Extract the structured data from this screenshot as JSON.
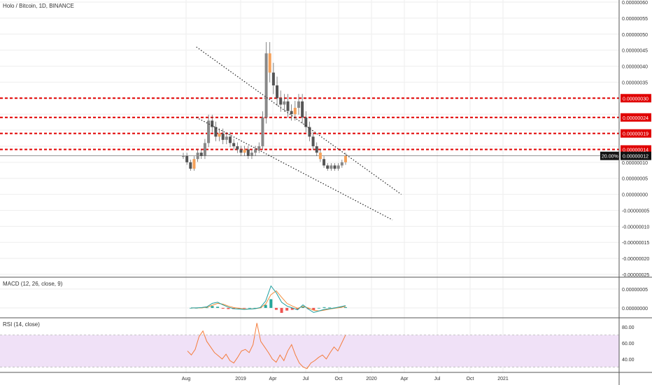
{
  "chart_data": {
    "type": "candlestick",
    "title": "Holo / Bitcoin, 1D, BINANCE",
    "x_tick_labels": [
      "Aug",
      "2019",
      "Apr",
      "Jul",
      "Oct",
      "2020",
      "Apr",
      "Jul",
      "Oct",
      "2021"
    ],
    "price_axis": {
      "ylim": [
        -2.5e-07,
        6e-07
      ],
      "tick_labels": [
        "0.00000060",
        "0.00000055",
        "0.00000050",
        "0.00000045",
        "0.00000040",
        "0.00000035",
        "0.00000030",
        "0.00000025",
        "0.00000020",
        "0.00000015",
        "0.00000010",
        "0.00000005",
        "0.00000000",
        "-0.00000005",
        "-0.00000010",
        "-0.00000015",
        "-0.00000020",
        "-0.00000025"
      ]
    },
    "horizontal_levels": [
      {
        "value": 3e-07,
        "label": "0.00000030",
        "color": "#e00000"
      },
      {
        "value": 2.4e-07,
        "label": "0.00000024",
        "color": "#e00000"
      },
      {
        "value": 1.9e-07,
        "label": "0.00000019",
        "color": "#e00000"
      },
      {
        "value": 1.4e-07,
        "label": "0.00000014",
        "color": "#e00000"
      }
    ],
    "last_price": {
      "value": 1.2e-07,
      "label": "0.00000012",
      "change_label": "20.00%"
    },
    "trendlines": [
      {
        "from": [
          0.03,
          4.6e-07
        ],
        "to": [
          0.5,
          0.0
        ],
        "style": "dotted"
      },
      {
        "from": [
          0.03,
          2.4e-07
        ],
        "to": [
          0.48,
          -8e-08
        ],
        "style": "dotted"
      }
    ],
    "close_series": [
      1.2e-07,
      1e-07,
      8e-08,
      1.1e-07,
      1.3e-07,
      1.2e-07,
      1.6e-07,
      2.3e-07,
      2.1e-07,
      1.8e-07,
      1.9e-07,
      1.7e-07,
      1.8e-07,
      1.6e-07,
      1.5e-07,
      1.4e-07,
      1.3e-07,
      1.4e-07,
      1.2e-07,
      1.3e-07,
      1.4e-07,
      1.5e-07,
      2.4e-07,
      4.4e-07,
      3.8e-07,
      3.4e-07,
      3e-07,
      2.8e-07,
      2.9e-07,
      2.6e-07,
      2.5e-07,
      2.7e-07,
      2.9e-07,
      2.4e-07,
      2.1e-07,
      1.8e-07,
      1.5e-07,
      1.3e-07,
      1.1e-07,
      9e-08,
      8e-08,
      9e-08,
      8e-08,
      9e-08,
      1e-07,
      1.2e-07
    ],
    "panes": [
      {
        "name": "MACD",
        "legend": "MACD (12, 26, close, 9)",
        "ylim": [
          -1.5e-08,
          7e-08
        ],
        "tick_labels": [
          "0.00000005",
          "0.00000000"
        ],
        "tick_values": [
          5e-08,
          0.0
        ],
        "macd_series": [
          0.0,
          0.0,
          1e-09,
          3e-09,
          1.2e-08,
          1.5e-08,
          8e-09,
          2e-09,
          -2e-09,
          -3e-09,
          -4e-09,
          -3e-09,
          -2e-09,
          1e-09,
          1.8e-08,
          5.8e-08,
          4e-08,
          1.5e-08,
          5e-09,
          0.0,
          -5e-09,
          8e-09,
          -3e-09,
          -1.2e-08,
          -8e-09,
          -4e-09,
          -2e-09,
          0.0,
          3e-09,
          6e-09
        ],
        "signal_series": [
          0.0,
          0.0,
          0.0,
          2e-09,
          7e-09,
          1.2e-08,
          1e-08,
          5e-09,
          1e-09,
          -1e-09,
          -3e-09,
          -3e-09,
          -2e-09,
          0.0,
          1e-08,
          3.5e-08,
          4.5e-08,
          2.8e-08,
          1.2e-08,
          5e-09,
          -1e-09,
          4e-09,
          0.0,
          -6e-09,
          -8e-09,
          -6e-09,
          -3e-09,
          -1e-09,
          1e-09,
          4e-09
        ]
      },
      {
        "name": "RSI",
        "legend": "RSI (14, close)",
        "ylim": [
          25,
          88
        ],
        "tick_labels": [
          "80.00",
          "60.00",
          "40.00"
        ],
        "tick_values": [
          80,
          60,
          40
        ],
        "band": [
          30,
          70
        ],
        "rsi_series": [
          50,
          45,
          52,
          68,
          75,
          62,
          55,
          48,
          44,
          40,
          46,
          38,
          35,
          42,
          50,
          52,
          48,
          58,
          85,
          62,
          55,
          48,
          40,
          36,
          45,
          38,
          50,
          58,
          45,
          35,
          30,
          28,
          35,
          38,
          42,
          45,
          40,
          48,
          55,
          50,
          60,
          70
        ]
      }
    ],
    "colors": {
      "up_candle": "#888888",
      "down_candle": "#555555",
      "accent_candle": "#f5a15a",
      "macd_line": "#1b9e9e",
      "signal_line": "#f28c3c",
      "histogram_up": "#26a69a",
      "histogram_down": "#ef5350",
      "rsi_line": "#f47c3c",
      "rsi_band": "#f0e1f7",
      "level_line": "#e00000",
      "grid": "#eeeeee"
    }
  }
}
